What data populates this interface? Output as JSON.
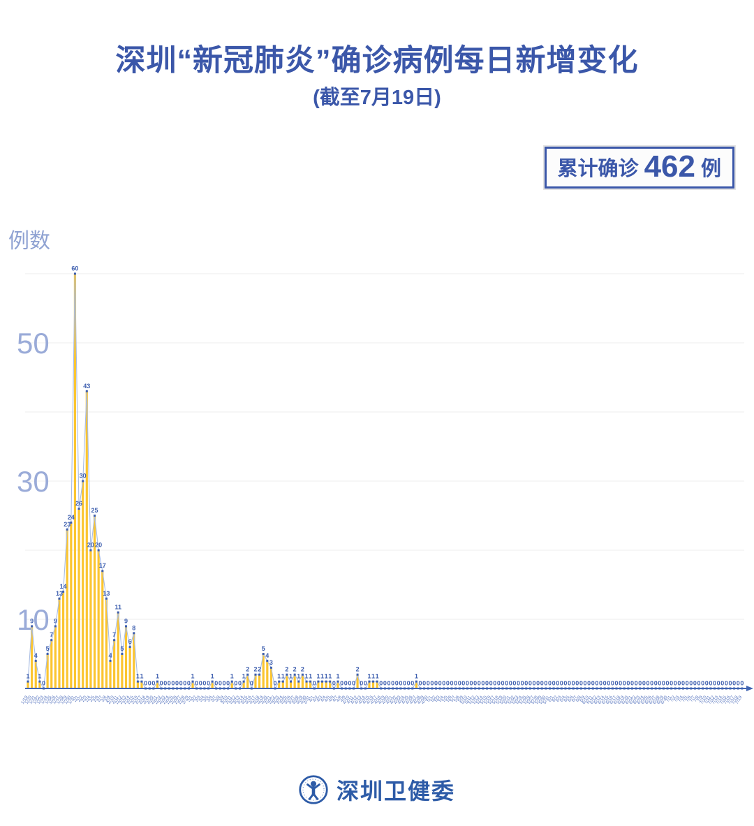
{
  "title": "深圳“新冠肺炎”确诊病例每日新增变化",
  "subtitle": "(截至7月19日)",
  "badge": {
    "prefix": "累计确诊",
    "number": "462",
    "suffix": "例"
  },
  "y_axis_unit": "例数",
  "footer": {
    "org": "深圳卫健委"
  },
  "colors": {
    "title_blue": "#3B57A9",
    "bar_yellow": "#FBC530",
    "line_blue": "#A8BCE3",
    "marker_blue": "#3E5FAF",
    "axis_tick_blue": "#9AABD8",
    "x_label_blue": "#5C79C0",
    "gridline": "#EDEDED",
    "axis_line": "#4064B2",
    "footer_blue": "#2D5BA7"
  },
  "chart_data": {
    "type": "bar",
    "title": "深圳“新冠肺炎”确诊病例每日新增变化",
    "subtitle": "(截至7月19日)",
    "ylabel": "例数",
    "xlabel": "",
    "ylim": [
      0,
      62
    ],
    "grid": true,
    "legend": "none",
    "y_gridlines": [
      10,
      20,
      30,
      40,
      50,
      60
    ],
    "y_tick_labels": [
      10,
      30,
      50
    ],
    "cumulative_total": 462,
    "x": [
      "1/19",
      "1/20",
      "1/21",
      "1/22",
      "1/23",
      "1/24",
      "1/25",
      "1/26",
      "1/27",
      "1/28",
      "1/29",
      "1/30",
      "1/31",
      "2/1",
      "2/2",
      "2/3",
      "2/4",
      "2/5",
      "2/6",
      "2/7",
      "2/8",
      "2/9",
      "2/10",
      "2/11",
      "2/12",
      "2/13",
      "2/14",
      "2/15",
      "2/16",
      "2/17",
      "2/18",
      "2/19",
      "2/20",
      "2/21",
      "2/22",
      "2/23",
      "2/24",
      "2/25",
      "2/26",
      "2/27",
      "2/28",
      "2/29",
      "3/1",
      "3/2",
      "3/3",
      "3/4",
      "3/5",
      "3/6",
      "3/7",
      "3/8",
      "3/9",
      "3/10",
      "3/11",
      "3/12",
      "3/13",
      "3/14",
      "3/15",
      "3/16",
      "3/17",
      "3/18",
      "3/19",
      "3/20",
      "3/21",
      "3/22",
      "3/23",
      "3/24",
      "3/25",
      "3/26",
      "3/27",
      "3/28",
      "3/29",
      "3/30",
      "3/31",
      "4/1",
      "4/2",
      "4/3",
      "4/4",
      "4/5",
      "4/6",
      "4/7",
      "4/8",
      "4/9",
      "4/10",
      "4/11",
      "4/12",
      "4/13",
      "4/14",
      "4/15",
      "4/16",
      "4/17",
      "4/18",
      "4/19",
      "4/20",
      "4/21",
      "4/22",
      "4/23",
      "4/24",
      "4/25",
      "4/26",
      "4/27",
      "4/28",
      "4/29",
      "4/30",
      "5/1",
      "5/2",
      "5/3",
      "5/4",
      "5/5",
      "5/6",
      "5/7",
      "5/8",
      "5/9",
      "5/10",
      "5/11",
      "5/12",
      "5/13",
      "5/14",
      "5/15",
      "5/16",
      "5/17",
      "5/18",
      "5/19",
      "5/20",
      "5/21",
      "5/22",
      "5/23",
      "5/24",
      "5/25",
      "5/26",
      "5/27",
      "5/28",
      "5/29",
      "5/30",
      "5/31",
      "6/1",
      "6/2",
      "6/3",
      "6/4",
      "6/5",
      "6/6",
      "6/7",
      "6/8",
      "6/9",
      "6/10",
      "6/11",
      "6/12",
      "6/13",
      "6/14",
      "6/15",
      "6/16",
      "6/17",
      "6/18",
      "6/19",
      "6/20",
      "6/21",
      "6/22",
      "6/23",
      "6/24",
      "6/25",
      "6/26",
      "6/27",
      "6/28",
      "6/29",
      "6/30",
      "7/1",
      "7/2",
      "7/3",
      "7/4",
      "7/5",
      "7/6",
      "7/7",
      "7/8",
      "7/9",
      "7/10",
      "7/11",
      "7/12",
      "7/13",
      "7/14",
      "7/15",
      "7/16",
      "7/17",
      "7/18",
      "7/19"
    ],
    "values": [
      1,
      9,
      4,
      1,
      0,
      5,
      7,
      9,
      13,
      14,
      23,
      24,
      60,
      26,
      30,
      43,
      20,
      25,
      20,
      17,
      13,
      4,
      7,
      11,
      5,
      9,
      6,
      8,
      1,
      1,
      0,
      0,
      0,
      1,
      0,
      0,
      0,
      0,
      0,
      0,
      0,
      0,
      1,
      0,
      0,
      0,
      0,
      1,
      0,
      0,
      0,
      0,
      1,
      0,
      0,
      1,
      2,
      0,
      2,
      2,
      5,
      4,
      3,
      0,
      1,
      1,
      2,
      1,
      2,
      1,
      2,
      1,
      1,
      0,
      1,
      1,
      1,
      1,
      0,
      1,
      0,
      0,
      0,
      0,
      2,
      0,
      0,
      1,
      1,
      1,
      0,
      0,
      0,
      0,
      0,
      0,
      0,
      0,
      0,
      1,
      0,
      0,
      0,
      0,
      0,
      0,
      0,
      0,
      0,
      0,
      0,
      0,
      0,
      0,
      0,
      0,
      0,
      0,
      0,
      0,
      0,
      0,
      0,
      0,
      0,
      0,
      0,
      0,
      0,
      0,
      0,
      0,
      0,
      0,
      0,
      0,
      0,
      0,
      0,
      0,
      0,
      0,
      0,
      0,
      0,
      0,
      0,
      0,
      0,
      0,
      0,
      0,
      0,
      0,
      0,
      0,
      0,
      0,
      0,
      0,
      0,
      0,
      0,
      0,
      0,
      0,
      0,
      0,
      0,
      0,
      0,
      0,
      0,
      0,
      0,
      0,
      0,
      0,
      0,
      0,
      0,
      0,
      0
    ]
  }
}
